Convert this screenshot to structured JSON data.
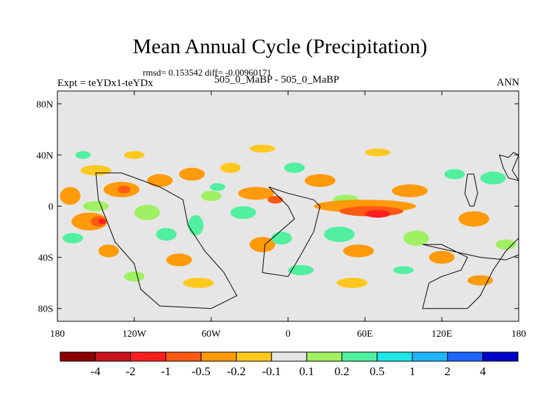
{
  "chart_data": {
    "type": "heatmap",
    "title": "Mean Annual Cycle (Precipitation)",
    "stats": "rmsd= 0.153542 diff= -0.00960171",
    "left_label": "Expt = teYDx1-teYDx",
    "center_label": "505_0_MaBP - 505_0_MaBP",
    "right_label": "ANN",
    "x_range": [
      -180,
      180
    ],
    "y_range": [
      -90,
      90
    ],
    "x_ticks": [
      {
        "value": -180,
        "label": "180"
      },
      {
        "value": -120,
        "label": "120W"
      },
      {
        "value": -60,
        "label": "60W"
      },
      {
        "value": 0,
        "label": "0"
      },
      {
        "value": 60,
        "label": "60E"
      },
      {
        "value": 120,
        "label": "120E"
      },
      {
        "value": 180,
        "label": "180"
      }
    ],
    "y_ticks": [
      {
        "value": 80,
        "label": "80N"
      },
      {
        "value": 40,
        "label": "40N"
      },
      {
        "value": 0,
        "label": "0"
      },
      {
        "value": -40,
        "label": "40S"
      },
      {
        "value": -80,
        "label": "80S"
      }
    ],
    "colorbar": {
      "colors": [
        "#8b0000",
        "#c8141e",
        "#ff1e1e",
        "#ff5a14",
        "#ff9a0a",
        "#ffc81e",
        "#e6e6e6",
        "#a0f064",
        "#50f0a0",
        "#1ee6e6",
        "#1eb4ff",
        "#1e64ff",
        "#0000c8"
      ],
      "labels": [
        "-4",
        "-2",
        "-1",
        "-0.5",
        "-0.2",
        "-0.1",
        "0.1",
        "0.2",
        "0.5",
        "1",
        "2",
        "4"
      ]
    },
    "patches": [
      {
        "lon": -170,
        "lat": 8,
        "rlon": 8,
        "rlat": 7,
        "level": 4
      },
      {
        "lon": -150,
        "lat": 28,
        "rlon": 12,
        "rlat": 4,
        "level": 5
      },
      {
        "lon": -130,
        "lat": 13,
        "rlon": 14,
        "rlat": 6,
        "level": 4
      },
      {
        "lon": -128,
        "lat": 13,
        "rlon": 5,
        "rlat": 3,
        "level": 3
      },
      {
        "lon": -150,
        "lat": 0,
        "rlon": 10,
        "rlat": 4,
        "level": 7
      },
      {
        "lon": -155,
        "lat": -12,
        "rlon": 14,
        "rlat": 7,
        "level": 4
      },
      {
        "lon": -148,
        "lat": -12,
        "rlon": 6,
        "rlat": 4,
        "level": 3
      },
      {
        "lon": -145,
        "lat": -12,
        "rlon": 3,
        "rlat": 2,
        "level": 2
      },
      {
        "lon": -168,
        "lat": -25,
        "rlon": 8,
        "rlat": 4,
        "level": 8
      },
      {
        "lon": -140,
        "lat": -35,
        "rlon": 8,
        "rlat": 5,
        "level": 4
      },
      {
        "lon": -100,
        "lat": 20,
        "rlon": 10,
        "rlat": 5,
        "level": 4
      },
      {
        "lon": -110,
        "lat": -5,
        "rlon": 10,
        "rlat": 6,
        "level": 7
      },
      {
        "lon": -95,
        "lat": -22,
        "rlon": 8,
        "rlat": 5,
        "level": 8
      },
      {
        "lon": -75,
        "lat": 25,
        "rlon": 10,
        "rlat": 5,
        "level": 4
      },
      {
        "lon": -60,
        "lat": 8,
        "rlon": 8,
        "rlat": 4,
        "level": 7
      },
      {
        "lon": -72,
        "lat": -15,
        "rlon": 6,
        "rlat": 8,
        "level": 8
      },
      {
        "lon": -85,
        "lat": -42,
        "rlon": 10,
        "rlat": 5,
        "level": 4
      },
      {
        "lon": -70,
        "lat": -60,
        "rlon": 12,
        "rlat": 4,
        "level": 5
      },
      {
        "lon": -45,
        "lat": 30,
        "rlon": 8,
        "rlat": 4,
        "level": 5
      },
      {
        "lon": -25,
        "lat": 10,
        "rlon": 14,
        "rlat": 5,
        "level": 4
      },
      {
        "lon": -10,
        "lat": 5,
        "rlon": 6,
        "rlat": 3,
        "level": 3
      },
      {
        "lon": -35,
        "lat": -5,
        "rlon": 10,
        "rlat": 5,
        "level": 8
      },
      {
        "lon": -20,
        "lat": -30,
        "rlon": 10,
        "rlat": 6,
        "level": 4
      },
      {
        "lon": -5,
        "lat": -25,
        "rlon": 8,
        "rlat": 5,
        "level": 8
      },
      {
        "lon": 25,
        "lat": 20,
        "rlon": 12,
        "rlat": 5,
        "level": 4
      },
      {
        "lon": 45,
        "lat": 5,
        "rlon": 10,
        "rlat": 4,
        "level": 7
      },
      {
        "lon": 60,
        "lat": 0,
        "rlon": 40,
        "rlat": 5,
        "level": 4
      },
      {
        "lon": 65,
        "lat": -4,
        "rlon": 25,
        "rlat": 4,
        "level": 3
      },
      {
        "lon": 70,
        "lat": -6,
        "rlon": 10,
        "rlat": 3,
        "level": 2
      },
      {
        "lon": 95,
        "lat": 12,
        "rlon": 14,
        "rlat": 5,
        "level": 4
      },
      {
        "lon": 40,
        "lat": -22,
        "rlon": 12,
        "rlat": 6,
        "level": 8
      },
      {
        "lon": 55,
        "lat": -35,
        "rlon": 12,
        "rlat": 5,
        "level": 4
      },
      {
        "lon": 100,
        "lat": -25,
        "rlon": 10,
        "rlat": 6,
        "level": 7
      },
      {
        "lon": 120,
        "lat": -40,
        "rlon": 10,
        "rlat": 5,
        "level": 4
      },
      {
        "lon": 145,
        "lat": -10,
        "rlon": 12,
        "rlat": 6,
        "level": 4
      },
      {
        "lon": 160,
        "lat": 22,
        "rlon": 10,
        "rlat": 5,
        "level": 8
      },
      {
        "lon": 170,
        "lat": -30,
        "rlon": 8,
        "rlat": 4,
        "level": 7
      },
      {
        "lon": -120,
        "lat": 40,
        "rlon": 8,
        "rlat": 3,
        "level": 5
      },
      {
        "lon": -20,
        "lat": 45,
        "rlon": 10,
        "rlat": 3,
        "level": 5
      },
      {
        "lon": 70,
        "lat": 42,
        "rlon": 10,
        "rlat": 3,
        "level": 5
      },
      {
        "lon": 50,
        "lat": -60,
        "rlon": 12,
        "rlat": 4,
        "level": 5
      },
      {
        "lon": 150,
        "lat": -58,
        "rlon": 10,
        "rlat": 4,
        "level": 4
      },
      {
        "lon": -120,
        "lat": -55,
        "rlon": 8,
        "rlat": 4,
        "level": 7
      },
      {
        "lon": 10,
        "lat": -50,
        "rlon": 10,
        "rlat": 4,
        "level": 8
      },
      {
        "lon": -55,
        "lat": 15,
        "rlon": 6,
        "rlat": 3,
        "level": 8
      },
      {
        "lon": 130,
        "lat": 25,
        "rlon": 8,
        "rlat": 4,
        "level": 8
      },
      {
        "lon": 5,
        "lat": 30,
        "rlon": 8,
        "rlat": 4,
        "level": 8
      },
      {
        "lon": -160,
        "lat": 40,
        "rlon": 6,
        "rlat": 3,
        "level": 8
      },
      {
        "lon": 90,
        "lat": -50,
        "rlon": 8,
        "rlat": 3,
        "level": 8
      }
    ],
    "continents": [
      {
        "name": "continent-americas",
        "outline": [
          [
            -150,
            26
          ],
          [
            -148,
            5
          ],
          [
            -140,
            -15
          ],
          [
            -135,
            -28
          ],
          [
            -120,
            -45
          ],
          [
            -115,
            -65
          ],
          [
            -100,
            -78
          ],
          [
            -60,
            -80
          ],
          [
            -40,
            -70
          ],
          [
            -50,
            -52
          ],
          [
            -65,
            -35
          ],
          [
            -78,
            -15
          ],
          [
            -82,
            5
          ],
          [
            -100,
            15
          ],
          [
            -130,
            26
          ]
        ]
      },
      {
        "name": "continent-africa",
        "outline": [
          [
            -15,
            15
          ],
          [
            0,
            0
          ],
          [
            5,
            -10
          ],
          [
            -18,
            -30
          ],
          [
            -20,
            -52
          ],
          [
            0,
            -55
          ],
          [
            10,
            -38
          ],
          [
            20,
            -20
          ],
          [
            25,
            0
          ],
          [
            20,
            5
          ],
          [
            0,
            10
          ]
        ]
      },
      {
        "name": "continent-australia",
        "outline": [
          [
            105,
            -30
          ],
          [
            120,
            -30
          ],
          [
            130,
            -35
          ],
          [
            140,
            -40
          ],
          [
            135,
            -50
          ],
          [
            120,
            -55
          ],
          [
            110,
            -60
          ],
          [
            105,
            -80
          ],
          [
            140,
            -80
          ],
          [
            150,
            -70
          ],
          [
            160,
            -50
          ],
          [
            170,
            -35
          ],
          [
            180,
            -25
          ],
          [
            180,
            -38
          ],
          [
            170,
            -42
          ],
          [
            150,
            -40
          ]
        ]
      },
      {
        "name": "continent-pacific-strip",
        "outline": [
          [
            138,
            10
          ],
          [
            142,
            0
          ],
          [
            145,
            0
          ],
          [
            148,
            10
          ],
          [
            145,
            25
          ],
          [
            140,
            25
          ]
        ]
      },
      {
        "name": "continent-ne",
        "outline": [
          [
            165,
            40
          ],
          [
            172,
            38
          ],
          [
            176,
            42
          ],
          [
            180,
            40
          ],
          [
            175,
            28
          ],
          [
            180,
            20
          ],
          [
            172,
            22
          ],
          [
            168,
            30
          ]
        ]
      }
    ]
  }
}
